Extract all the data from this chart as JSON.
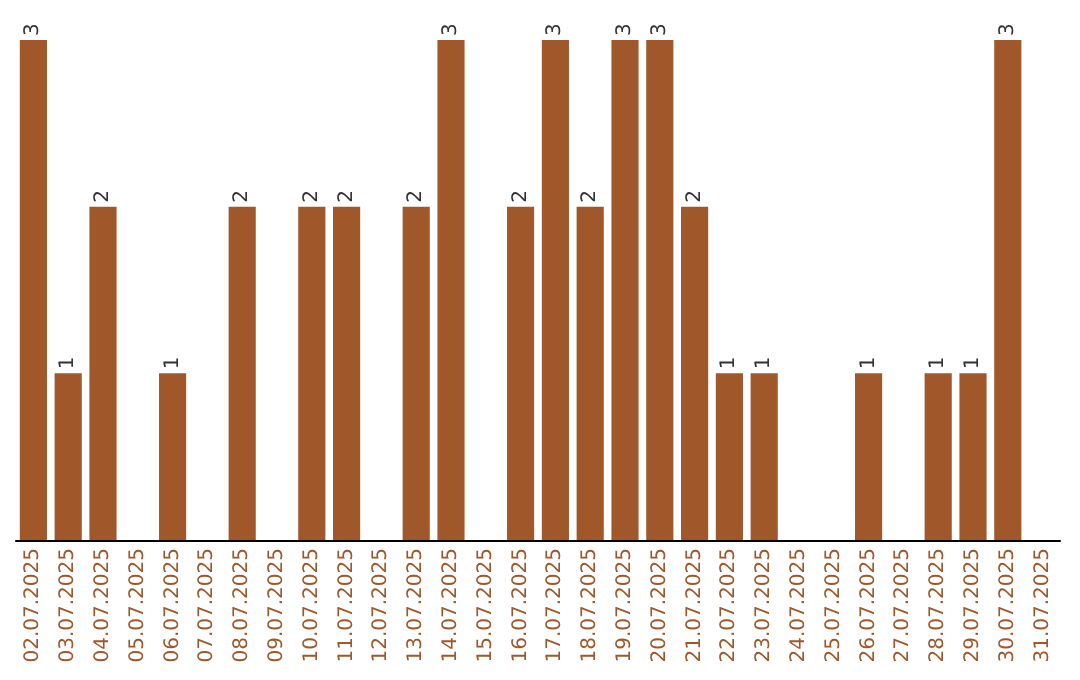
{
  "chart_data": {
    "type": "bar",
    "categories": [
      "02.07.2025",
      "03.07.2025",
      "04.07.2025",
      "05.07.2025",
      "06.07.2025",
      "07.07.2025",
      "08.07.2025",
      "09.07.2025",
      "10.07.2025",
      "11.07.2025",
      "12.07.2025",
      "13.07.2025",
      "14.07.2025",
      "15.07.2025",
      "16.07.2025",
      "17.07.2025",
      "18.07.2025",
      "19.07.2025",
      "20.07.2025",
      "21.07.2025",
      "22.07.2025",
      "23.07.2025",
      "24.07.2025",
      "25.07.2025",
      "26.07.2025",
      "27.07.2025",
      "28.07.2025",
      "29.07.2025",
      "30.07.2025",
      "31.07.2025"
    ],
    "values": [
      3,
      1,
      2,
      0,
      1,
      0,
      2,
      0,
      2,
      2,
      0,
      2,
      3,
      0,
      2,
      3,
      2,
      3,
      3,
      2,
      1,
      1,
      0,
      0,
      1,
      0,
      1,
      1,
      3,
      0
    ],
    "value_labels": [
      "3",
      "1",
      "2",
      null,
      "1",
      null,
      "2",
      null,
      "2",
      "2",
      null,
      "2",
      "3",
      null,
      "2",
      "3",
      "2",
      "3",
      "3",
      "2",
      "1",
      "1",
      null,
      null,
      "1",
      null,
      "1",
      "1",
      "3",
      null
    ],
    "color": "#a0572a",
    "grid": false
  }
}
